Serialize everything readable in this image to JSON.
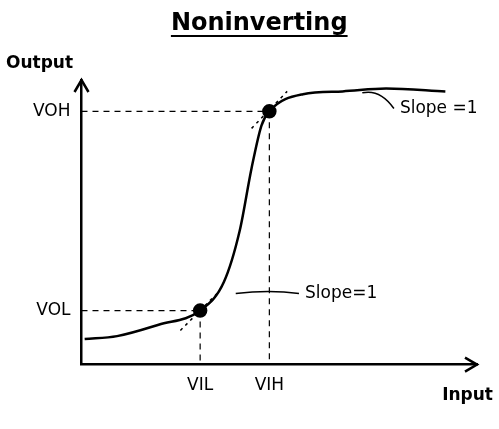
{
  "chart_data": {
    "type": "line",
    "title": "Noninverting",
    "xlabel": "Input",
    "ylabel": "Output",
    "xlim": [
      0,
      10
    ],
    "ylim": [
      0,
      10
    ],
    "xticks": [
      {
        "value": 3.0,
        "label": "VIL"
      },
      {
        "value": 4.75,
        "label": "VIH"
      }
    ],
    "yticks": [
      {
        "value": 1.9,
        "label": "VOL"
      },
      {
        "value": 8.9,
        "label": "VOH"
      }
    ],
    "grid": false,
    "series": [
      {
        "x": [
          0.08,
          0.9,
          1.95,
          3.0,
          3.6,
          4.0,
          4.3,
          4.55,
          4.75,
          5.6,
          6.6,
          7.7,
          9.2
        ],
        "values": [
          0.9,
          1.0,
          1.4,
          1.9,
          2.9,
          4.7,
          6.9,
          8.4,
          8.9,
          9.5,
          9.6,
          9.7,
          9.6
        ],
        "color": "#000000",
        "line_style": "solid",
        "marker": "none"
      },
      {
        "x": [
          3.0,
          4.75
        ],
        "values": [
          1.9,
          8.9
        ],
        "color": "#000000",
        "line_style": "none",
        "marker": "circle"
      },
      {
        "x": [
          2.5,
          3.5
        ],
        "values": [
          1.2,
          2.6
        ],
        "color": "#000000",
        "line_style": "dotted",
        "marker": "none"
      },
      {
        "x": [
          4.3,
          5.2
        ],
        "values": [
          8.3,
          9.6
        ],
        "color": "#000000",
        "line_style": "dotted",
        "marker": "none"
      }
    ],
    "annotations": [
      {
        "text": "Slope =1",
        "x": 8.0,
        "y": 9.0,
        "point": [
          7.1,
          9.55
        ]
      },
      {
        "text": "Slope=1",
        "x": 5.6,
        "y": 2.5,
        "point": [
          3.9,
          2.5
        ]
      }
    ]
  }
}
